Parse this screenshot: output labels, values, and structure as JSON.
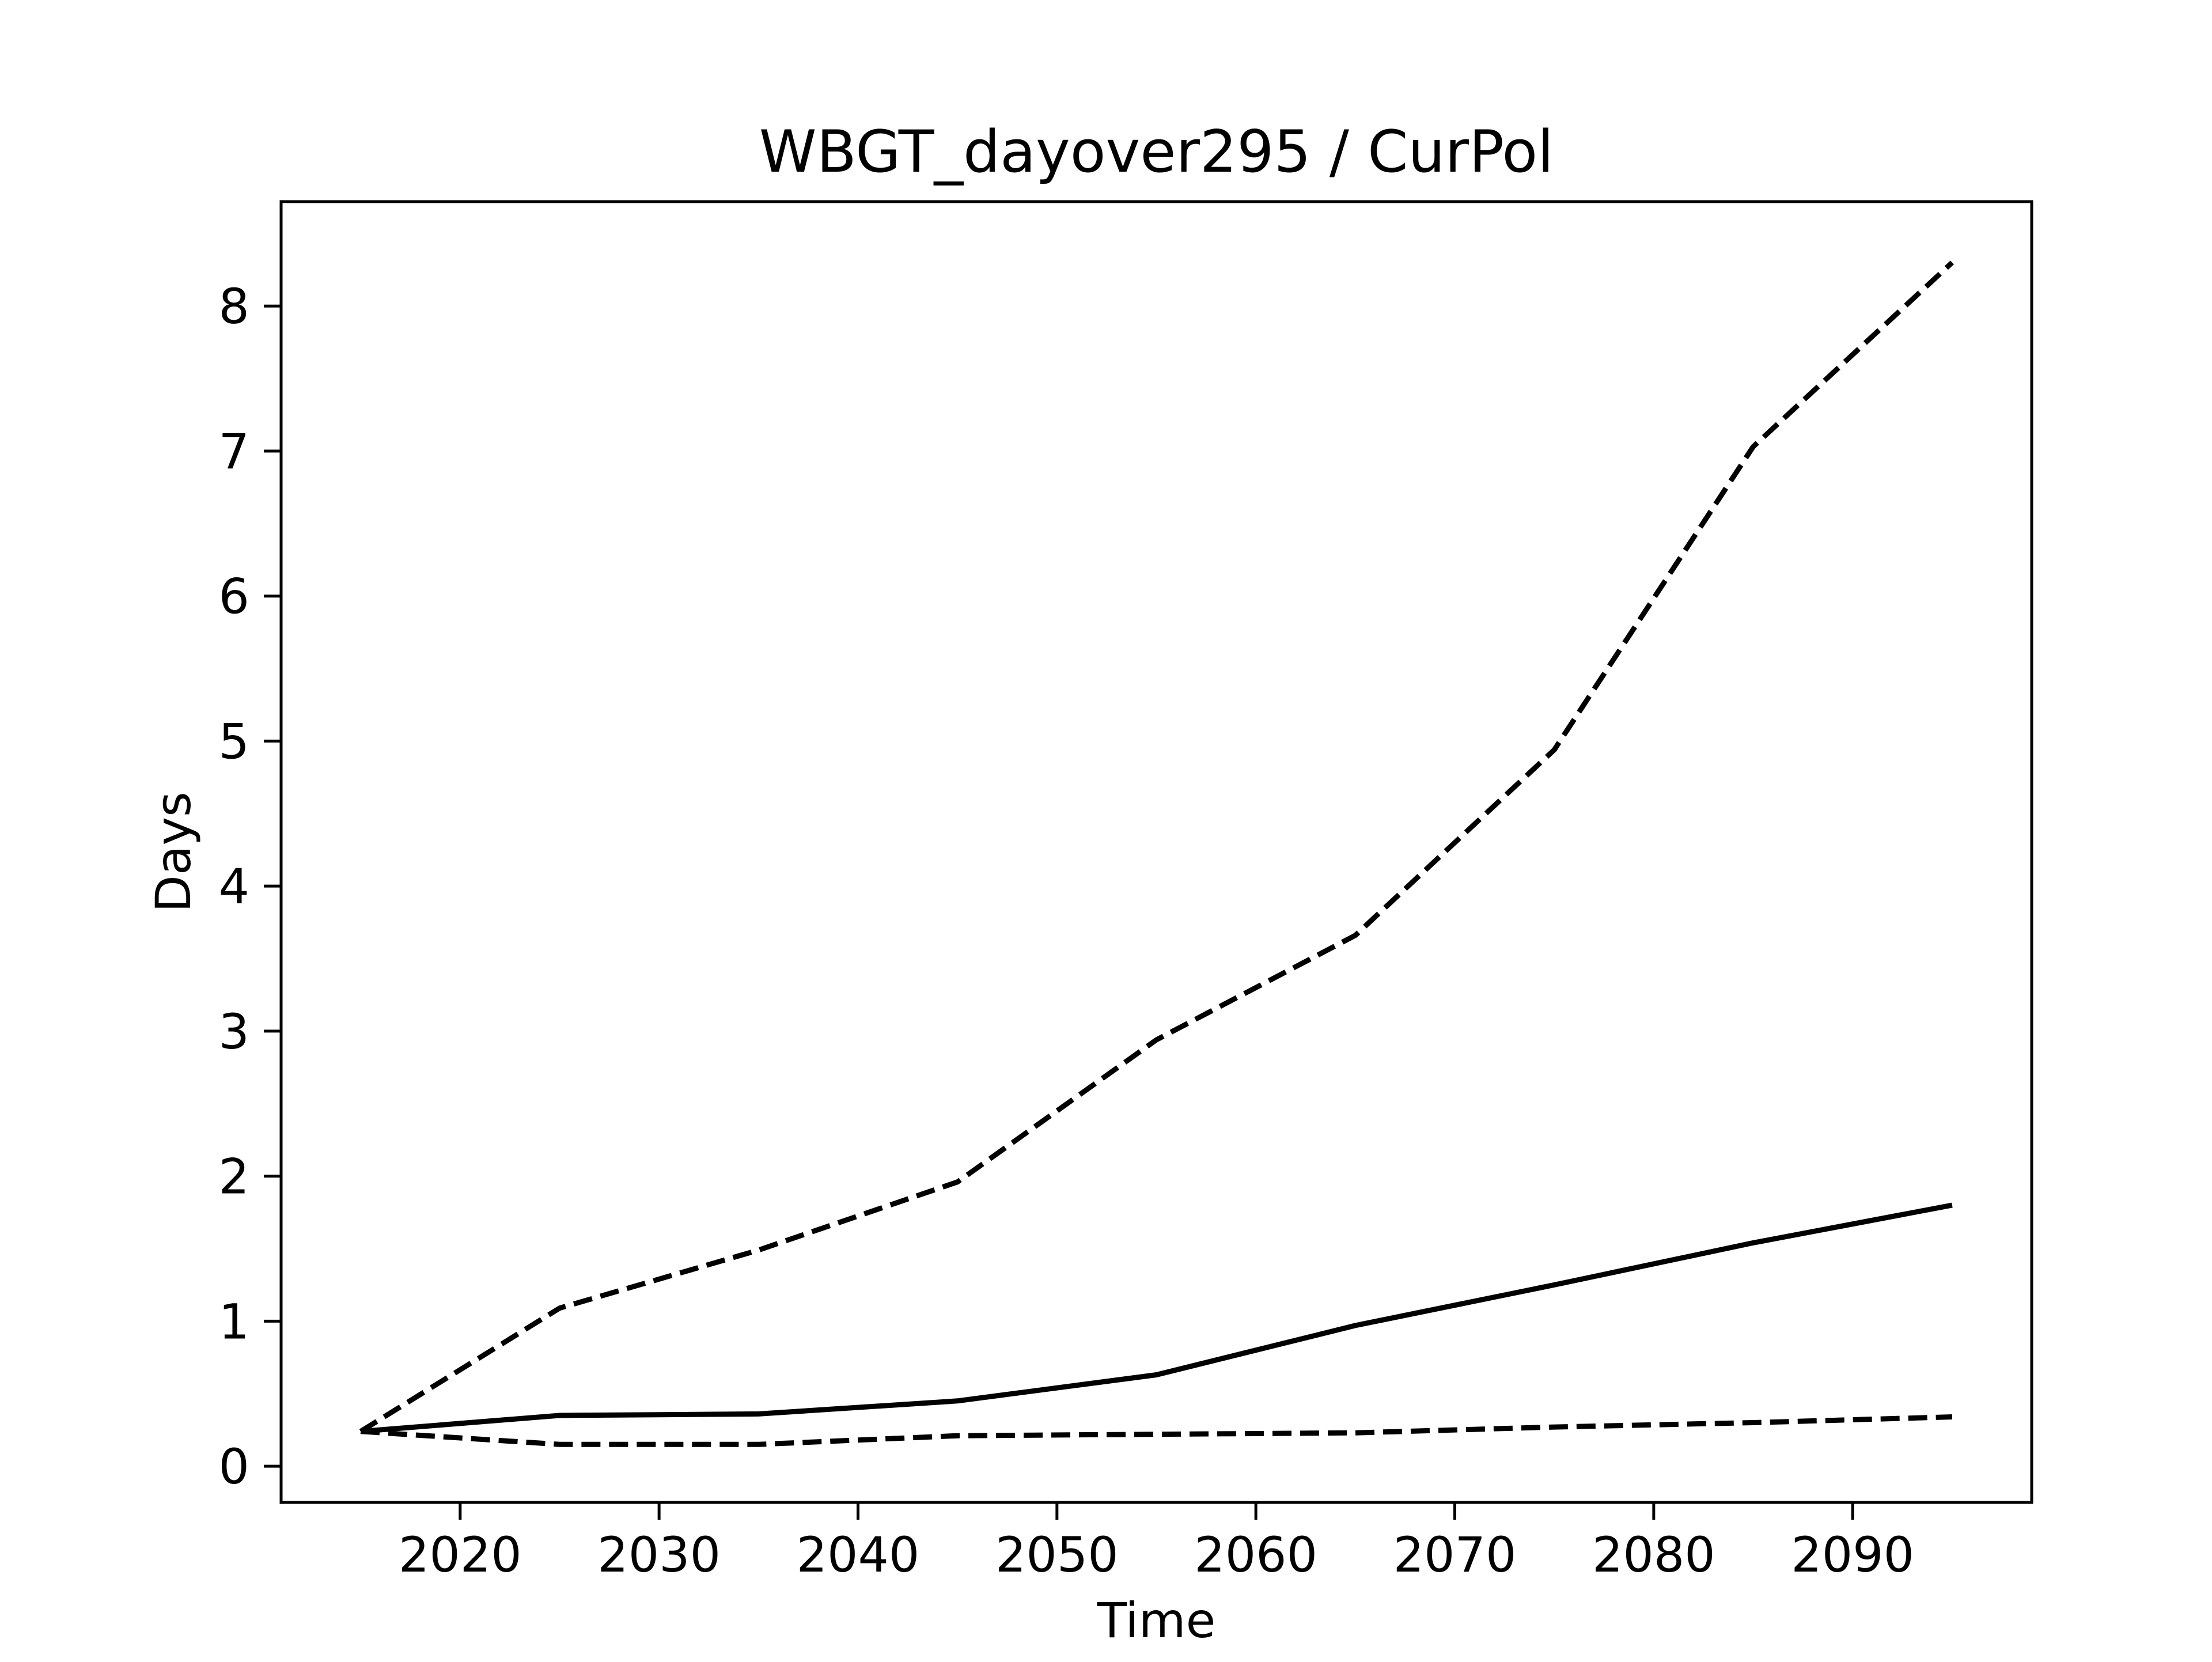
{
  "chart_data": {
    "type": "line",
    "title": "WBGT_dayover295 / CurPol",
    "xlabel": "Time",
    "ylabel": "Days",
    "xlim": [
      2011,
      2099
    ],
    "ylim": [
      -0.25,
      8.72
    ],
    "x_ticks": [
      2020,
      2030,
      2040,
      2050,
      2060,
      2070,
      2080,
      2090
    ],
    "y_ticks": [
      0,
      1,
      2,
      3,
      4,
      5,
      6,
      7,
      8
    ],
    "grid": false,
    "legend": "none",
    "x": [
      2015,
      2025,
      2035,
      2045,
      2055,
      2065,
      2075,
      2085,
      2095
    ],
    "series": [
      {
        "style": "solid",
        "color": "#000000",
        "values": [
          0.24,
          0.35,
          0.36,
          0.45,
          0.63,
          0.97,
          1.25,
          1.54,
          1.8
        ]
      },
      {
        "style": "dashed",
        "color": "#000000",
        "values": [
          0.24,
          1.09,
          1.49,
          1.96,
          2.94,
          3.66,
          4.94,
          7.03,
          8.3
        ]
      },
      {
        "style": "dashed",
        "color": "#000000",
        "values": [
          0.24,
          0.15,
          0.15,
          0.21,
          0.22,
          0.23,
          0.27,
          0.3,
          0.34
        ]
      }
    ]
  }
}
